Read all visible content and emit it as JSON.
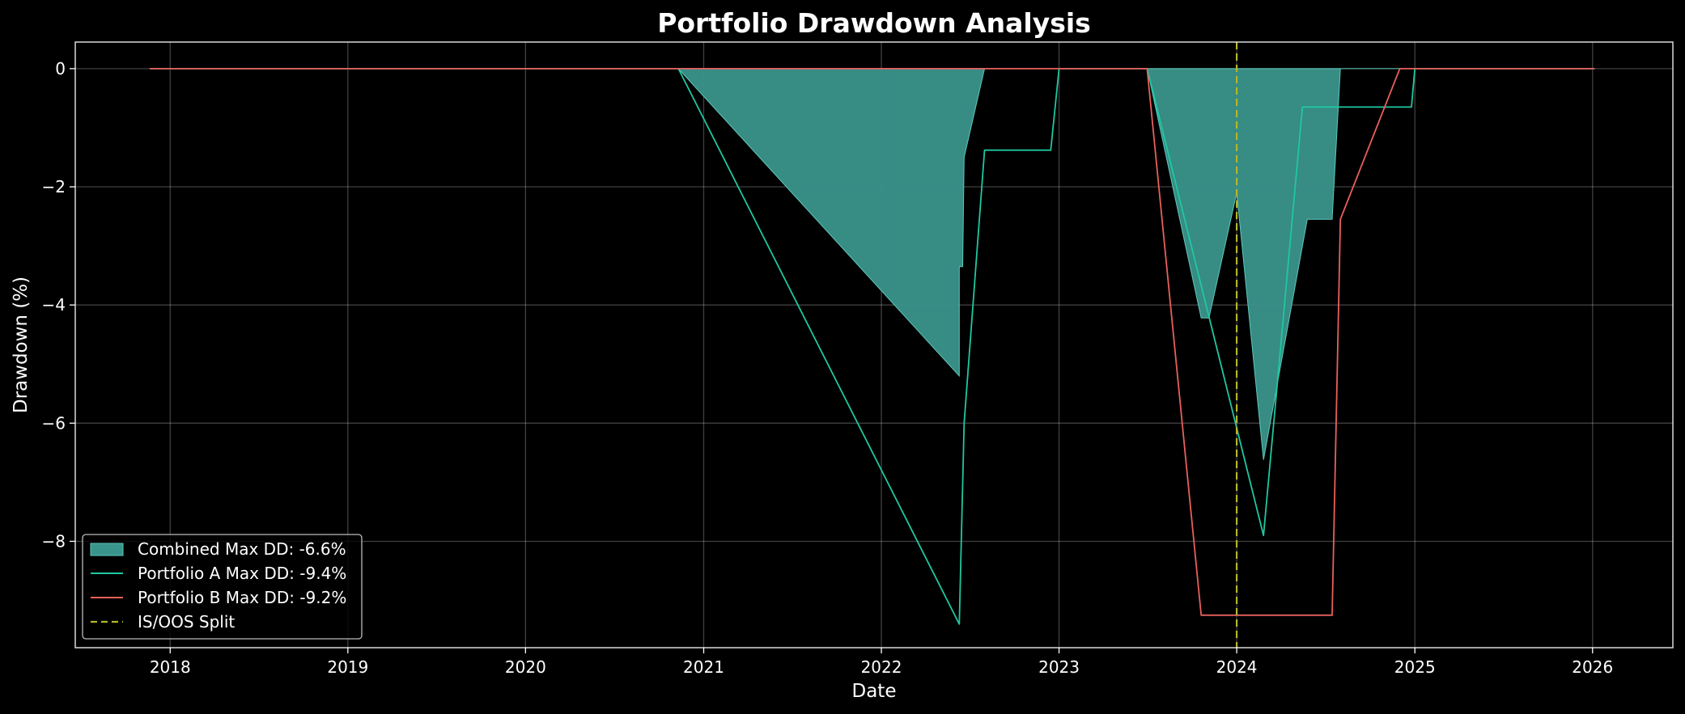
{
  "chart_data": {
    "type": "line",
    "title": "Portfolio Drawdown Analysis",
    "xlabel": "Date",
    "ylabel": "Drawdown (%)",
    "xlim": [
      "2017-06-20",
      "2026-06-15"
    ],
    "ylim": [
      -9.8,
      0.45
    ],
    "x_ticks": [
      "2018",
      "2019",
      "2020",
      "2021",
      "2022",
      "2023",
      "2024",
      "2025",
      "2026"
    ],
    "y_ticks": [
      0,
      -2,
      -4,
      -6,
      -8
    ],
    "y_tick_labels": [
      "0",
      "−2",
      "−4",
      "−6",
      "−8"
    ],
    "grid": true,
    "legend_position": "lower-left",
    "series": [
      {
        "name": "Combined Max DD: -6.6%",
        "kind": "area",
        "color": "#3a948b",
        "points": [
          [
            "2017-11-20",
            0
          ],
          [
            "2020-11-10",
            0
          ],
          [
            "2022-06-10",
            -5.2
          ],
          [
            "2022-06-10",
            -3.35
          ],
          [
            "2022-06-17",
            -3.35
          ],
          [
            "2022-06-20",
            -1.5
          ],
          [
            "2022-08-01",
            0
          ],
          [
            "2023-07-01",
            0
          ],
          [
            "2023-10-20",
            -4.22
          ],
          [
            "2023-11-05",
            -4.22
          ],
          [
            "2024-01-01",
            -2.1
          ],
          [
            "2024-02-25",
            -6.62
          ],
          [
            "2024-05-25",
            -2.55
          ],
          [
            "2024-07-15",
            -2.55
          ],
          [
            "2024-08-01",
            0
          ],
          [
            "2026-01-05",
            0
          ]
        ]
      },
      {
        "name": "Portfolio A Max DD: -9.4%",
        "kind": "line",
        "color": "#1fc8a0",
        "points": [
          [
            "2017-11-20",
            0
          ],
          [
            "2020-11-10",
            0
          ],
          [
            "2022-06-10",
            -9.4
          ],
          [
            "2022-06-20",
            -6.0
          ],
          [
            "2022-08-01",
            -1.38
          ],
          [
            "2022-12-15",
            -1.38
          ],
          [
            "2023-01-01",
            0
          ],
          [
            "2023-07-01",
            0
          ],
          [
            "2024-02-25",
            -7.9
          ],
          [
            "2024-05-15",
            -0.65
          ],
          [
            "2024-12-25",
            -0.65
          ],
          [
            "2025-01-01",
            0
          ],
          [
            "2026-01-05",
            0
          ]
        ]
      },
      {
        "name": "Portfolio B Max DD: -9.2%",
        "kind": "line",
        "color": "#e8605c",
        "points": [
          [
            "2017-11-20",
            0
          ],
          [
            "2023-07-01",
            0
          ],
          [
            "2023-10-20",
            -9.25
          ],
          [
            "2024-07-15",
            -9.25
          ],
          [
            "2024-08-01",
            -2.55
          ],
          [
            "2024-12-01",
            0
          ],
          [
            "2026-01-05",
            0
          ]
        ]
      },
      {
        "name": "IS/OOS Split",
        "kind": "vline",
        "color": "#b5b52a",
        "x": "2024-01-01"
      }
    ]
  }
}
